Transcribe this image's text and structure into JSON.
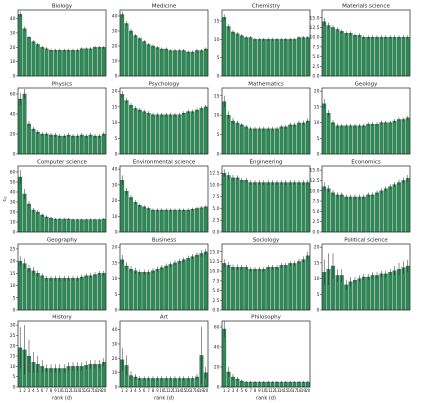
{
  "chart_data": [
    {
      "type": "bar",
      "title": "Biology",
      "color": "#2e8b57",
      "ylim": [
        0,
        46
      ],
      "yticks": [
        0,
        10,
        20,
        30,
        40
      ],
      "values": [
        43,
        33,
        27,
        24,
        22,
        20,
        19,
        18,
        18,
        18,
        18,
        18,
        18,
        18,
        19,
        19,
        19,
        20,
        20,
        20
      ],
      "errors": [
        2,
        1.5,
        1,
        1,
        1,
        1,
        1,
        1,
        1,
        1,
        1,
        1,
        1,
        1,
        1,
        1,
        1,
        1,
        1,
        1
      ]
    },
    {
      "type": "bar",
      "title": "Medicine",
      "color": "#2e8b57",
      "ylim": [
        0,
        44
      ],
      "yticks": [
        0,
        10,
        20,
        30,
        40
      ],
      "values": [
        41,
        35,
        30,
        27,
        25,
        23,
        21,
        20,
        19,
        18,
        18,
        17,
        17,
        17,
        17,
        16,
        16,
        17,
        17,
        18
      ],
      "errors": [
        2,
        1.5,
        1.5,
        1,
        1,
        1,
        1,
        1,
        1,
        1,
        1,
        1,
        1,
        1,
        1,
        1,
        1,
        1,
        1,
        1
      ]
    },
    {
      "type": "bar",
      "title": "Chemistry",
      "color": "#2e8b57",
      "ylim": [
        0,
        18
      ],
      "yticks": [
        0,
        5,
        10,
        15
      ],
      "values": [
        16,
        13.5,
        12,
        11.5,
        11,
        10.5,
        10.5,
        10,
        10,
        10,
        10,
        10,
        10,
        10,
        10,
        10,
        10,
        10.5,
        10.5,
        10.5
      ],
      "errors": [
        0.8,
        0.6,
        0.5,
        0.5,
        0.4,
        0.4,
        0.4,
        0.4,
        0.4,
        0.4,
        0.4,
        0.4,
        0.4,
        0.4,
        0.4,
        0.4,
        0.4,
        0.4,
        0.4,
        0.4
      ]
    },
    {
      "type": "bar",
      "title": "Materials science",
      "color": "#2e8b57",
      "ylim": [
        0,
        17
      ],
      "yticks": [
        {
          "value": 0,
          "label": "0.0"
        },
        {
          "value": 2.5,
          "label": "2.5"
        },
        {
          "value": 5,
          "label": "5.0"
        },
        {
          "value": 7.5,
          "label": "7.5"
        },
        {
          "value": 10,
          "label": "10.0"
        },
        {
          "value": 12.5,
          "label": "12.5"
        },
        {
          "value": 15,
          "label": "15.0"
        }
      ],
      "values": [
        14,
        13,
        12.5,
        12,
        11.5,
        11,
        11,
        10.5,
        10.5,
        10,
        10,
        10,
        10,
        10,
        10,
        10,
        10,
        10,
        10,
        10
      ],
      "errors": [
        1,
        0.8,
        0.6,
        0.5,
        0.5,
        0.5,
        0.5,
        0.5,
        0.5,
        0.5,
        0.5,
        0.5,
        0.5,
        0.5,
        0.5,
        0.5,
        0.5,
        0.5,
        0.5,
        0.5
      ]
    },
    {
      "type": "bar",
      "title": "Physics",
      "color": "#2e8b57",
      "ylim": [
        0,
        66
      ],
      "yticks": [
        0,
        20,
        40,
        60
      ],
      "values": [
        55,
        60,
        30,
        25,
        22,
        20,
        20,
        19,
        19,
        18,
        18,
        19,
        18,
        18,
        19,
        18,
        19,
        18,
        18,
        20
      ],
      "errors": [
        6,
        5,
        3,
        2,
        2,
        2,
        2,
        2,
        2,
        2,
        2,
        2,
        2,
        2,
        2,
        2,
        2,
        2,
        2,
        2
      ]
    },
    {
      "type": "bar",
      "title": "Psychology",
      "color": "#2e8b57",
      "ylim": [
        0,
        21
      ],
      "yticks": [
        0,
        5,
        10,
        15,
        20
      ],
      "values": [
        19,
        17,
        15.5,
        14.5,
        14,
        13.5,
        13,
        12.5,
        12.5,
        12.5,
        12.5,
        12.5,
        12.5,
        12.5,
        13,
        13.5,
        13.5,
        14,
        14.5,
        15
      ],
      "errors": [
        1,
        0.8,
        0.7,
        0.7,
        0.6,
        0.6,
        0.6,
        0.6,
        0.6,
        0.6,
        0.6,
        0.6,
        0.6,
        0.6,
        0.6,
        0.6,
        0.6,
        0.6,
        0.6,
        0.6
      ]
    },
    {
      "type": "bar",
      "title": "Mathematics",
      "color": "#2e8b57",
      "ylim": [
        0,
        17
      ],
      "yticks": [
        0,
        5,
        10,
        15
      ],
      "values": [
        13.5,
        10,
        8.5,
        8,
        7.5,
        7,
        6.5,
        6.5,
        6.5,
        6.5,
        6.5,
        6.5,
        6.5,
        7,
        7,
        7.5,
        7.5,
        8,
        8,
        8.5
      ],
      "errors": [
        1.5,
        1,
        0.8,
        0.6,
        0.5,
        0.5,
        0.5,
        0.5,
        0.5,
        0.5,
        0.5,
        0.5,
        0.5,
        0.5,
        0.5,
        0.5,
        0.6,
        0.6,
        0.6,
        0.6
      ]
    },
    {
      "type": "bar",
      "title": "Geology",
      "color": "#2e8b57",
      "ylim": [
        0,
        21
      ],
      "yticks": [
        0,
        5,
        10,
        15,
        20
      ],
      "values": [
        16,
        13,
        10,
        9,
        9,
        9,
        9,
        9,
        9,
        9,
        9.5,
        9.5,
        9.5,
        10,
        10,
        10,
        10.5,
        11,
        11,
        11.5
      ],
      "errors": [
        1.5,
        1,
        0.8,
        0.7,
        0.6,
        0.6,
        0.6,
        0.6,
        0.6,
        0.6,
        0.6,
        0.6,
        0.6,
        0.6,
        0.6,
        0.6,
        0.6,
        0.6,
        0.6,
        0.6
      ]
    },
    {
      "type": "bar",
      "title": "Computer science",
      "color": "#2e8b57",
      "ylim": [
        0,
        66
      ],
      "yticks": [
        0,
        10,
        20,
        30,
        40,
        50,
        60
      ],
      "ylabel": {
        "base": "c",
        "sub": "d"
      },
      "values": [
        55,
        38,
        28,
        22,
        20,
        17,
        15,
        14,
        13,
        13,
        13,
        13,
        12.5,
        12.5,
        12.5,
        12.5,
        12.5,
        12.5,
        12.5,
        13
      ],
      "errors": [
        7,
        5,
        3,
        2,
        2,
        1.5,
        1.5,
        1,
        1,
        1,
        1,
        1,
        1,
        1,
        1,
        1,
        1,
        1,
        1,
        1
      ]
    },
    {
      "type": "bar",
      "title": "Environmental science",
      "color": "#2e8b57",
      "ylim": [
        0,
        42
      ],
      "yticks": [
        0,
        10,
        20,
        30,
        40
      ],
      "values": [
        33,
        26,
        22,
        19,
        17,
        16,
        15,
        14,
        14,
        14,
        14,
        14,
        14,
        14,
        14,
        14,
        14.5,
        15,
        15.5,
        16
      ],
      "errors": [
        3,
        2,
        1.5,
        1.2,
        1,
        1,
        1,
        1,
        1,
        1,
        1,
        1,
        1,
        1,
        1,
        1,
        1,
        1,
        1,
        1
      ]
    },
    {
      "type": "bar",
      "title": "Engineering",
      "color": "#2e8b57",
      "ylim": [
        0,
        14
      ],
      "yticks": [
        {
          "value": 0,
          "label": "0.0"
        },
        {
          "value": 2.5,
          "label": "2.5"
        },
        {
          "value": 5,
          "label": "5.0"
        },
        {
          "value": 7.5,
          "label": "7.5"
        },
        {
          "value": 10,
          "label": "10.0"
        },
        {
          "value": 12.5,
          "label": "12.5"
        }
      ],
      "values": [
        12.5,
        12,
        11.5,
        11.5,
        11,
        11,
        10.5,
        10.5,
        10.5,
        10.5,
        10.5,
        10.5,
        10.5,
        10.5,
        10.5,
        10.5,
        10.5,
        10.5,
        10.5,
        10.5
      ],
      "errors": [
        0.8,
        0.7,
        0.6,
        0.5,
        0.5,
        0.5,
        0.5,
        0.5,
        0.5,
        0.5,
        0.5,
        0.5,
        0.5,
        0.5,
        0.5,
        0.5,
        0.5,
        0.5,
        0.5,
        0.5
      ]
    },
    {
      "type": "bar",
      "title": "Economics",
      "color": "#2e8b57",
      "ylim": [
        0,
        16
      ],
      "yticks": [
        {
          "value": 0,
          "label": "0.0"
        },
        {
          "value": 2.5,
          "label": "2.5"
        },
        {
          "value": 5,
          "label": "5.0"
        },
        {
          "value": 7.5,
          "label": "7.5"
        },
        {
          "value": 10,
          "label": "10.0"
        },
        {
          "value": 12.5,
          "label": "12.5"
        },
        {
          "value": 15,
          "label": "15.0"
        }
      ],
      "values": [
        11,
        10.5,
        9.5,
        9,
        9,
        8.5,
        8.5,
        8.5,
        8.5,
        8.5,
        9,
        9,
        9.5,
        10,
        10.5,
        11,
        11.5,
        12,
        12.5,
        13
      ],
      "errors": [
        1,
        0.8,
        0.7,
        0.6,
        0.6,
        0.6,
        0.6,
        0.6,
        0.6,
        0.6,
        0.6,
        0.6,
        0.6,
        0.6,
        0.6,
        0.6,
        0.6,
        0.7,
        0.7,
        0.8
      ]
    },
    {
      "type": "bar",
      "title": "Geography",
      "color": "#2e8b57",
      "ylim": [
        0,
        27
      ],
      "yticks": [
        0,
        5,
        10,
        15,
        20,
        25
      ],
      "values": [
        20,
        19,
        17,
        16,
        15,
        14,
        13,
        13,
        13,
        13,
        13,
        13,
        13,
        13,
        13.5,
        14,
        14,
        14.5,
        15,
        15
      ],
      "errors": [
        2,
        2,
        1.5,
        1.5,
        1.2,
        1,
        1,
        1,
        1,
        1,
        1,
        1,
        1,
        1,
        1,
        1,
        1,
        1,
        1,
        1
      ]
    },
    {
      "type": "bar",
      "title": "Business",
      "color": "#2e8b57",
      "ylim": [
        0,
        21
      ],
      "yticks": [
        0,
        5,
        10,
        15,
        20
      ],
      "values": [
        16,
        14,
        13,
        12.5,
        12,
        12,
        12,
        12.5,
        13,
        13.5,
        14,
        14.5,
        15,
        15.5,
        16,
        16.5,
        17,
        17.5,
        18,
        18.5
      ],
      "errors": [
        1.5,
        1.2,
        1,
        1,
        0.8,
        0.8,
        0.8,
        0.8,
        0.8,
        0.8,
        0.8,
        0.8,
        0.8,
        0.8,
        0.8,
        0.8,
        0.8,
        0.8,
        1,
        1
      ]
    },
    {
      "type": "bar",
      "title": "Sociology",
      "color": "#2e8b57",
      "ylim": [
        0,
        17
      ],
      "yticks": [
        {
          "value": 0,
          "label": "0.0"
        },
        {
          "value": 2.5,
          "label": "2.5"
        },
        {
          "value": 5,
          "label": "5.0"
        },
        {
          "value": 7.5,
          "label": "7.5"
        },
        {
          "value": 10,
          "label": "10.0"
        },
        {
          "value": 12.5,
          "label": "12.5"
        },
        {
          "value": 15,
          "label": "15.0"
        }
      ],
      "values": [
        12,
        11.5,
        11,
        11,
        11,
        11,
        10.5,
        10.5,
        10.5,
        10.5,
        11,
        11,
        11,
        11.5,
        11.5,
        12,
        12,
        12.5,
        13,
        14
      ],
      "errors": [
        1,
        0.8,
        0.7,
        0.7,
        0.6,
        0.6,
        0.6,
        0.6,
        0.6,
        0.6,
        0.6,
        0.6,
        0.6,
        0.6,
        0.6,
        0.6,
        0.7,
        0.7,
        0.8,
        1
      ]
    },
    {
      "type": "bar",
      "title": "Political science",
      "color": "#2e8b57",
      "ylim": [
        0,
        21
      ],
      "yticks": [
        0,
        5,
        10,
        15,
        20
      ],
      "values": [
        12,
        13,
        14,
        11,
        11,
        8,
        9,
        9.5,
        10,
        10.5,
        10.5,
        11,
        11,
        11.5,
        11.5,
        12,
        12.5,
        13,
        13.5,
        14
      ],
      "errors": [
        4,
        5,
        4,
        2,
        2,
        1.5,
        1.5,
        1,
        1,
        1,
        1,
        1,
        1,
        1,
        1,
        1,
        1.5,
        2,
        2,
        2
      ]
    },
    {
      "type": "bar",
      "title": "History",
      "color": "#2e8b57",
      "ylim": [
        0,
        32
      ],
      "yticks": [
        0,
        5,
        10,
        15,
        20,
        25,
        30
      ],
      "categories": [
        "1",
        "2",
        "3",
        "4",
        "5",
        "6",
        "7",
        "8",
        "9",
        "10",
        "11",
        "12",
        "13",
        "14",
        "15",
        "16",
        "17",
        "18",
        "19",
        "20"
      ],
      "xlabel": "rank (d)",
      "values": [
        19,
        18,
        15,
        12,
        11,
        10,
        9,
        9,
        9,
        9,
        9,
        10,
        10,
        10,
        10,
        10.5,
        11,
        11,
        11,
        12
      ],
      "errors": [
        10,
        12,
        8,
        5,
        4,
        3,
        2,
        2,
        2,
        2,
        2,
        2,
        2,
        2,
        2,
        2,
        2,
        2,
        2,
        2
      ]
    },
    {
      "type": "bar",
      "title": "Art",
      "color": "#2e8b57",
      "ylim": [
        0,
        46
      ],
      "yticks": [
        0,
        10,
        20,
        30,
        40
      ],
      "categories": [
        "1",
        "2",
        "3",
        "4",
        "5",
        "6",
        "7",
        "8",
        "9",
        "10",
        "11",
        "12",
        "13",
        "14",
        "15",
        "16",
        "17",
        "18",
        "19",
        "20"
      ],
      "xlabel": "rank (d)",
      "values": [
        19,
        15,
        8,
        7,
        6,
        6,
        6,
        6,
        6,
        6,
        6,
        6,
        6,
        6,
        6,
        6,
        6,
        7,
        22,
        10
      ],
      "errors": [
        8,
        7,
        3,
        2,
        1.5,
        1.5,
        1.5,
        1.5,
        1.5,
        1.5,
        1.5,
        1.5,
        1.5,
        1.5,
        1.5,
        1.5,
        1.5,
        2,
        20,
        4
      ]
    },
    {
      "type": "bar",
      "title": "Philosophy",
      "color": "#2e8b57",
      "ylim": [
        0,
        66
      ],
      "yticks": [
        0,
        20,
        40,
        60
      ],
      "categories": [
        "1",
        "2",
        "3",
        "4",
        "5",
        "6",
        "7",
        "8",
        "9",
        "10",
        "11",
        "12",
        "13",
        "14",
        "15",
        "16",
        "17",
        "18",
        "19",
        "20"
      ],
      "xlabel": "rank (d)",
      "values": [
        58,
        15,
        10,
        8,
        6,
        5,
        5,
        5,
        5,
        5,
        5,
        5,
        5,
        5,
        5,
        5,
        5,
        5,
        5,
        5
      ],
      "errors": [
        8,
        5,
        3,
        2,
        1.5,
        1,
        1,
        1,
        1,
        1,
        1,
        1,
        1,
        1,
        1,
        1,
        1,
        1,
        1,
        1
      ]
    }
  ]
}
